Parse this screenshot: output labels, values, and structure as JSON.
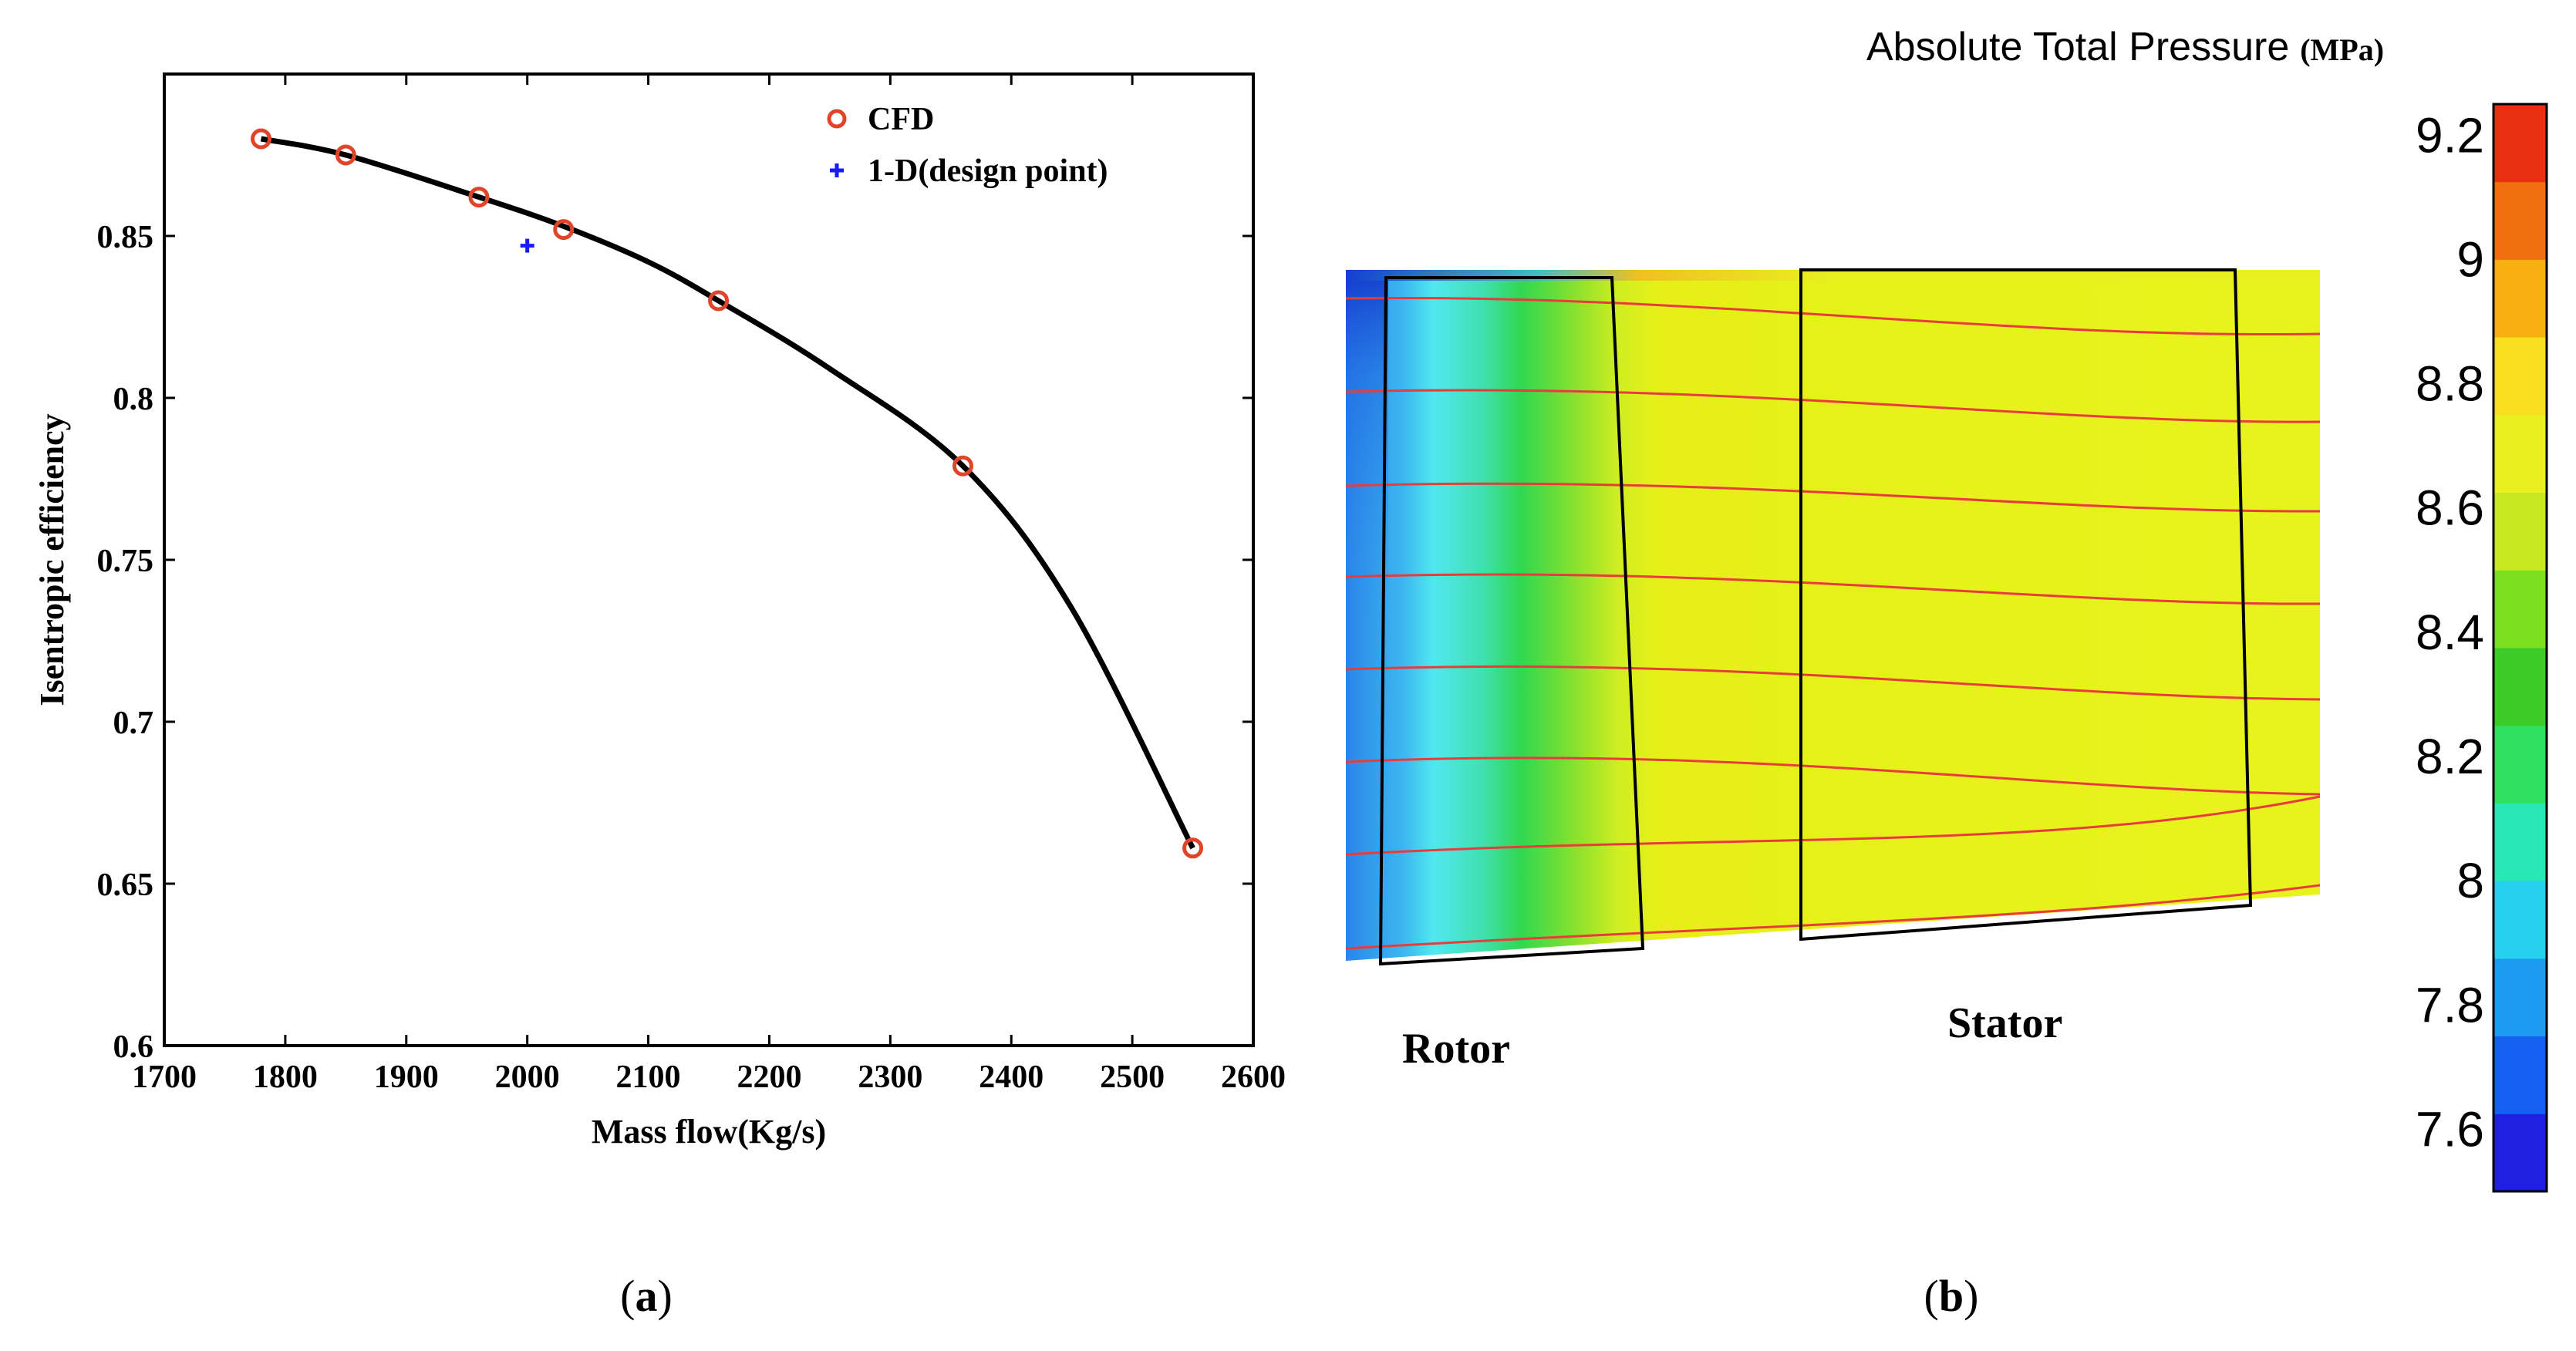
{
  "panel_a": {
    "caption_letter": "a",
    "chart_data": {
      "type": "line",
      "title": "",
      "xlabel": "Mass flow(Kg/s)",
      "ylabel": "Isentropic efficiency",
      "xlim": [
        1700,
        2600
      ],
      "ylim": [
        0.6,
        0.9
      ],
      "xticks": [
        1700,
        1800,
        1900,
        2000,
        2100,
        2200,
        2300,
        2400,
        2500,
        2600
      ],
      "yticks": [
        0.6,
        0.65,
        0.7,
        0.75,
        0.8,
        0.85
      ],
      "xtick_labels": [
        "1700",
        "1800",
        "1900",
        "2000",
        "2100",
        "2200",
        "2300",
        "2400",
        "2500",
        "2600"
      ],
      "ytick_labels": [
        "0.6",
        "0.65",
        "0.7",
        "0.75",
        "0.8",
        "0.85"
      ],
      "series": [
        {
          "name": "CFD",
          "marker": "circle",
          "color": "#e0452a",
          "x": [
            1780,
            1850,
            1960,
            2030,
            2158,
            2360,
            2550
          ],
          "y": [
            0.88,
            0.875,
            0.862,
            0.852,
            0.83,
            0.779,
            0.661
          ]
        },
        {
          "name": "1-D(design point)",
          "marker": "plus",
          "color": "#1a1aff",
          "x": [
            2000
          ],
          "y": [
            0.847
          ]
        }
      ],
      "fit_curve": {
        "color": "#000000",
        "x": [
          1780,
          1850,
          1960,
          2030,
          2100,
          2158,
          2250,
          2360,
          2450,
          2550
        ],
        "y": [
          0.88,
          0.875,
          0.862,
          0.853,
          0.842,
          0.83,
          0.809,
          0.779,
          0.735,
          0.661
        ]
      },
      "legend": {
        "position": "top-right",
        "entries": [
          "CFD",
          "1-D(design point)"
        ]
      }
    }
  },
  "panel_b": {
    "caption_letter": "b",
    "colorbar": {
      "title": "Absolute Total Pressure",
      "unit": "(MPa)",
      "ticks": [
        "9.2",
        "9",
        "8.8",
        "8.6",
        "8.4",
        "8.2",
        "8",
        "7.8",
        "7.6"
      ],
      "range": [
        7.5,
        9.25
      ],
      "colors": [
        "#2020e0",
        "#1460f0",
        "#1c9cf0",
        "#28d0f0",
        "#28e8b8",
        "#30e060",
        "#3ccc28",
        "#7ce020",
        "#c8e820",
        "#e8f020",
        "#f8e020",
        "#f8b010",
        "#f07010",
        "#e83010"
      ]
    },
    "labels": {
      "rotor": "Rotor",
      "stator": "Stator"
    }
  }
}
